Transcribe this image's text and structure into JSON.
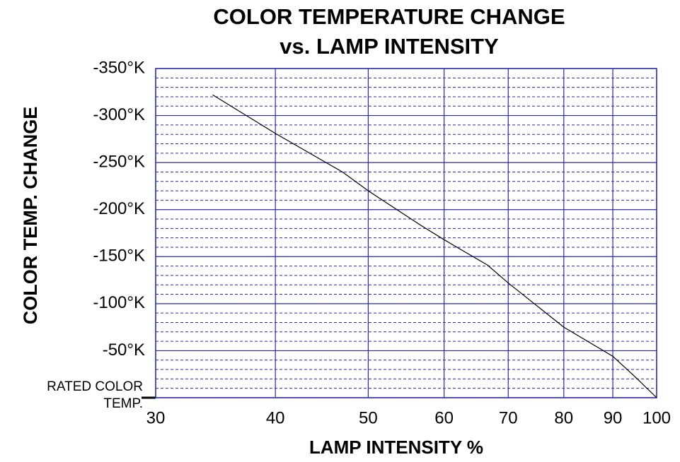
{
  "chart_data": {
    "type": "line",
    "title": "COLOR TEMPERATURE  CHANGE",
    "subtitle": "vs. LAMP INTENSITY",
    "x_label": "LAMP INTENSITY %",
    "y_label": "COLOR TEMP. CHANGE",
    "x": [
      34.4,
      40,
      47,
      50,
      56.8,
      60,
      66.6,
      70,
      80,
      90,
      95,
      100
    ],
    "series": [
      {
        "color": "#000000",
        "values": [
          -322,
          -281,
          -240,
          -220,
          -183,
          -168,
          -141,
          -122,
          -75,
          -44,
          -22,
          0
        ]
      }
    ],
    "xscale": "log",
    "xlim": [
      30,
      100
    ],
    "xticks": [
      30,
      40,
      50,
      60,
      70,
      80,
      90,
      100
    ],
    "ylim": [
      0,
      -350
    ],
    "yticks": [
      {
        "value": 0,
        "label": "RATED COLOR TEMP."
      },
      {
        "value": -50,
        "label": "-50°K"
      },
      {
        "value": -100,
        "label": "-100°K"
      },
      {
        "value": -150,
        "label": "-150°K"
      },
      {
        "value": -200,
        "label": "-200°K"
      },
      {
        "value": -250,
        "label": "-250°K"
      },
      {
        "value": -300,
        "label": "-300°K"
      },
      {
        "value": -350,
        "label": "-350°K"
      }
    ],
    "minor_yticks": [
      -10,
      -20,
      -30,
      -40,
      -60,
      -70,
      -80,
      -90,
      -110,
      -120,
      -130,
      -140,
      -160,
      -170,
      -180,
      -190,
      -210,
      -220,
      -230,
      -240,
      -260,
      -270,
      -280,
      -290,
      -310,
      -320,
      -330,
      -340
    ],
    "grid": true,
    "grid_color": "#2a2aa8"
  }
}
